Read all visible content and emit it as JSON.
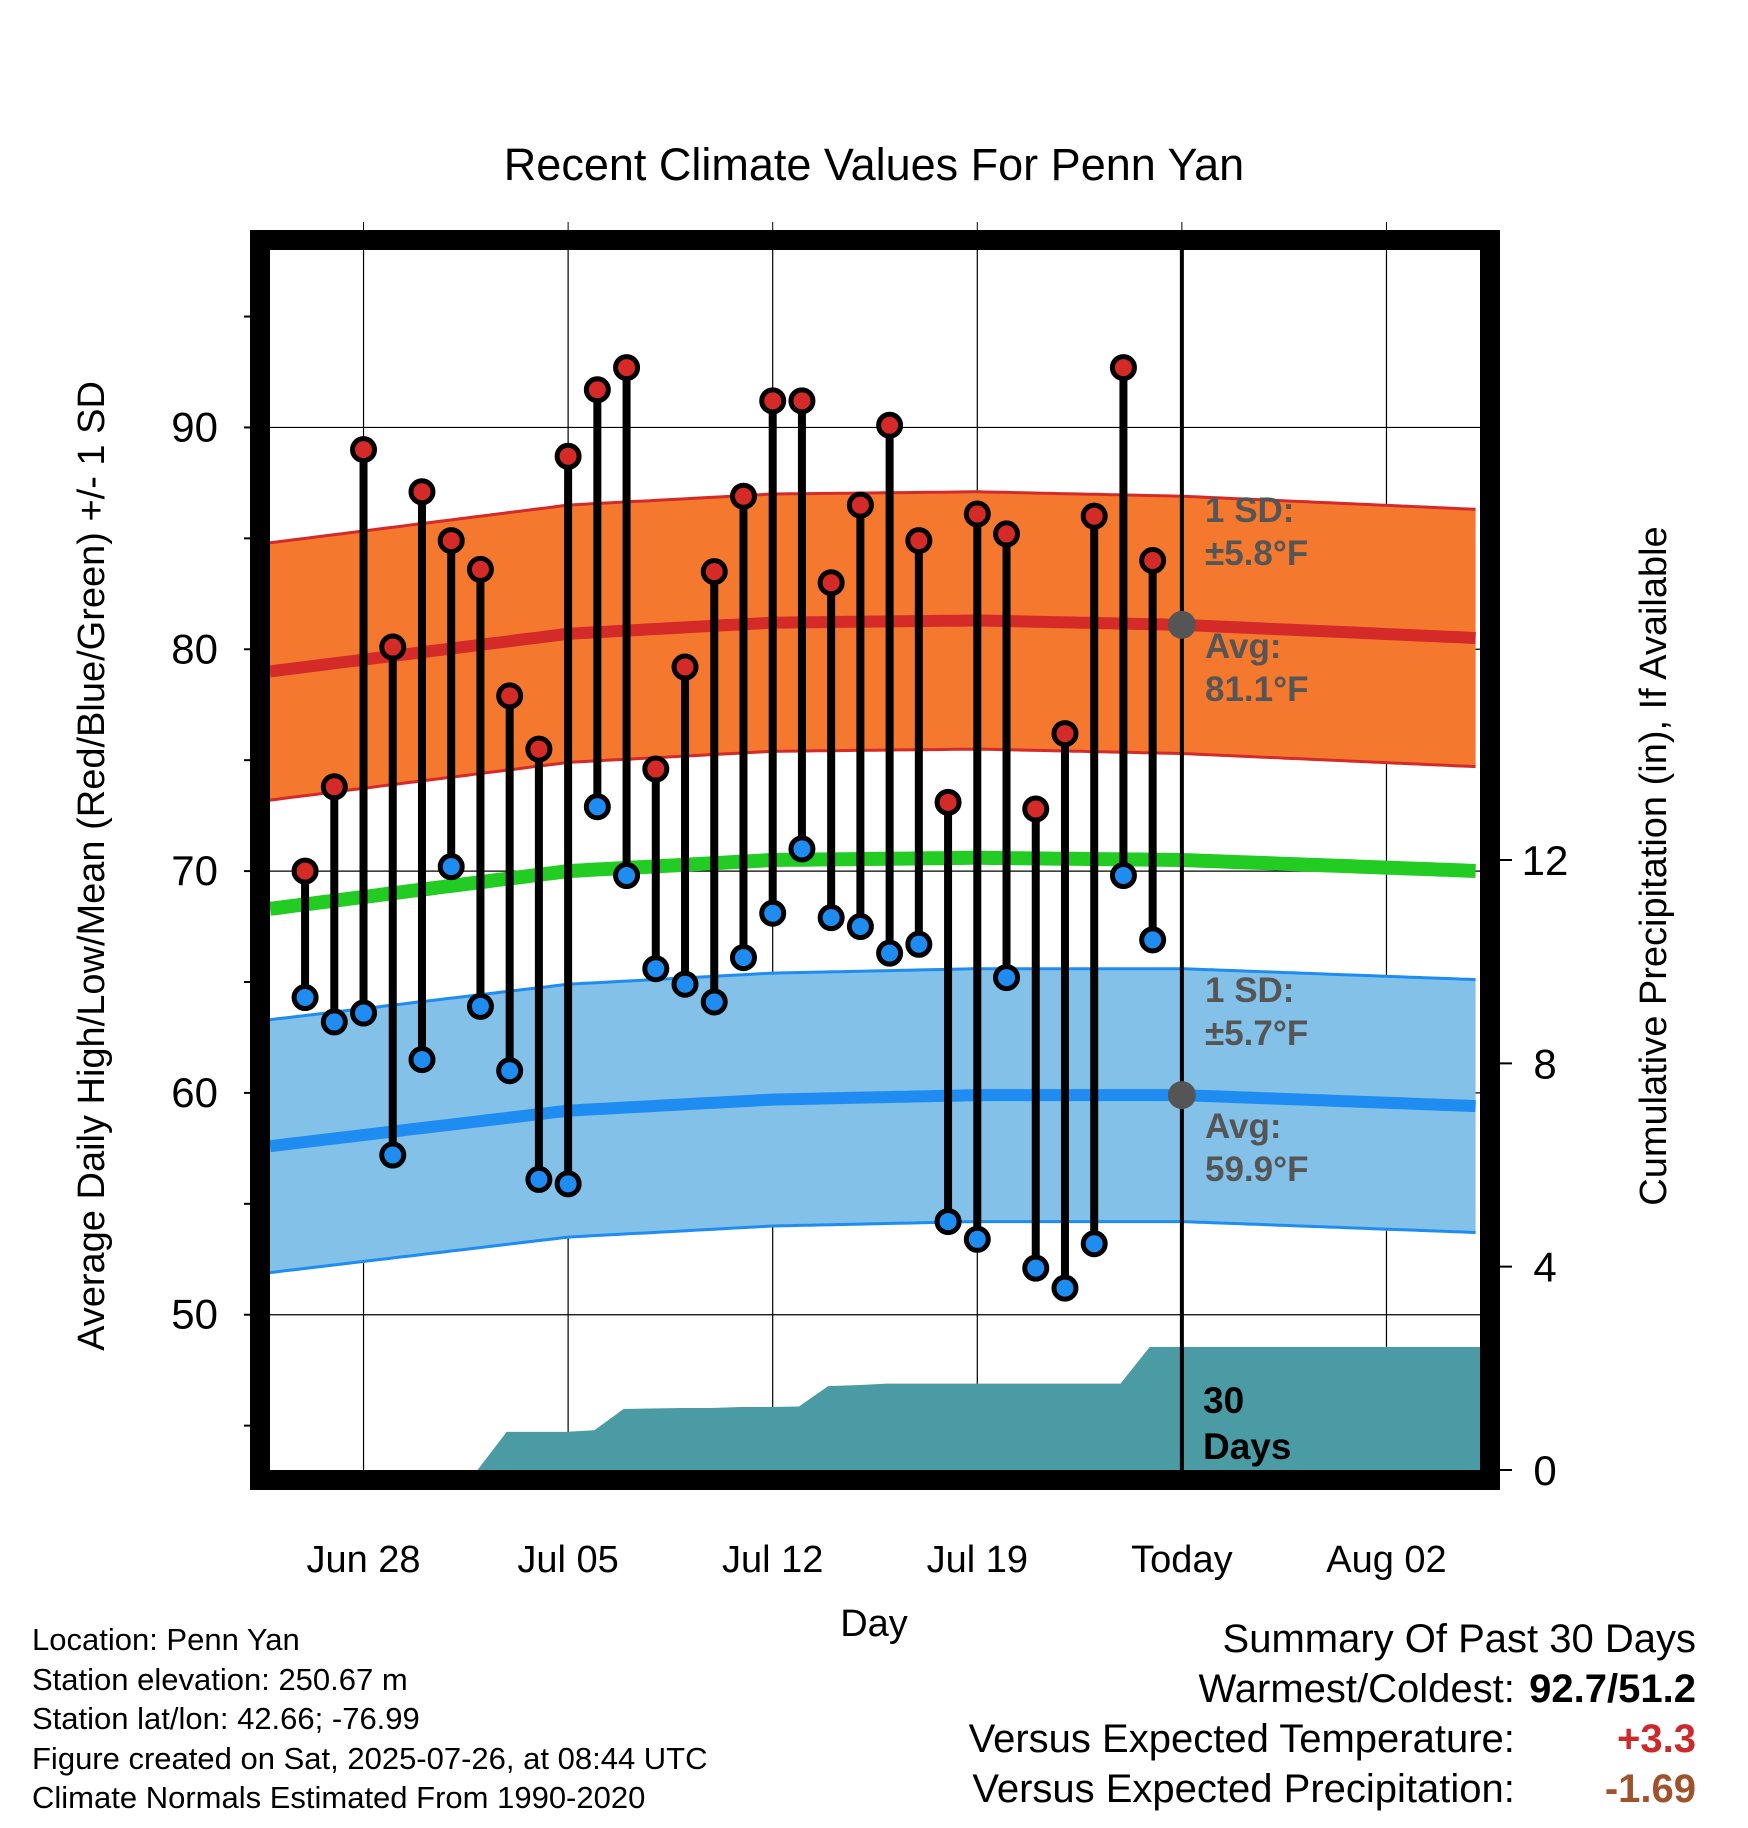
{
  "chart_data": {
    "type": "line",
    "title": "Recent Climate Values For Penn Yan",
    "xlabel": "Day",
    "ylabel": "Average Daily High/Low/Mean (Red/Blue/Green) +/- 1 SD",
    "y2label": "Cumulative Precipitation (in), If Available",
    "ylim": [
      43,
      98
    ],
    "y_ticks": [
      50,
      60,
      70,
      80,
      90
    ],
    "y2lim": [
      0,
      24
    ],
    "y2_ticks": [
      0,
      4,
      8,
      12
    ],
    "x_range_days": [
      -3.2,
      38.2
    ],
    "x_ticks": [
      {
        "day": 0,
        "label": "Jun 28"
      },
      {
        "day": 7,
        "label": "Jul 05"
      },
      {
        "day": 14,
        "label": "Jul 12"
      },
      {
        "day": 21,
        "label": "Jul 19"
      },
      {
        "day": 28,
        "label": "Today"
      },
      {
        "day": 35,
        "label": "Aug 02"
      }
    ],
    "grid": true,
    "today_day": 28,
    "daily_days": [
      -2,
      -1,
      0,
      1,
      2,
      3,
      4,
      5,
      6,
      7,
      8,
      9,
      10,
      11,
      12,
      13,
      14,
      15,
      16,
      17,
      18,
      19,
      20,
      21,
      22,
      23,
      24,
      25,
      26,
      27
    ],
    "daily_highs": [
      70.0,
      73.8,
      89.0,
      80.1,
      87.1,
      84.9,
      83.6,
      77.9,
      75.5,
      88.7,
      91.7,
      92.7,
      74.6,
      79.2,
      83.5,
      86.9,
      91.2,
      91.2,
      83.0,
      86.5,
      90.1,
      84.9,
      73.1,
      86.1,
      85.2,
      72.8,
      76.2,
      86.0,
      92.7,
      84.0
    ],
    "daily_lows": [
      64.3,
      63.2,
      63.6,
      57.2,
      61.5,
      70.2,
      63.9,
      61.0,
      56.1,
      55.9,
      72.9,
      69.8,
      65.6,
      64.9,
      64.1,
      66.1,
      68.1,
      71.0,
      67.9,
      67.5,
      66.3,
      66.7,
      54.2,
      53.4,
      65.2,
      52.1,
      51.2,
      53.2,
      69.8,
      66.9
    ],
    "normal_high": [
      {
        "day": -3.2,
        "value": 79.0
      },
      {
        "day": 7,
        "value": 80.7
      },
      {
        "day": 14,
        "value": 81.2
      },
      {
        "day": 21,
        "value": 81.3
      },
      {
        "day": 28,
        "value": 81.1
      },
      {
        "day": 38.2,
        "value": 80.5
      }
    ],
    "normal_low": [
      {
        "day": -3.2,
        "value": 57.6
      },
      {
        "day": 7,
        "value": 59.2
      },
      {
        "day": 14,
        "value": 59.7
      },
      {
        "day": 21,
        "value": 59.9
      },
      {
        "day": 28,
        "value": 59.9
      },
      {
        "day": 38.2,
        "value": 59.4
      }
    ],
    "normal_mean": [
      {
        "day": -3.2,
        "value": 68.3
      },
      {
        "day": 7,
        "value": 70.0
      },
      {
        "day": 14,
        "value": 70.5
      },
      {
        "day": 21,
        "value": 70.6
      },
      {
        "day": 28,
        "value": 70.5
      },
      {
        "day": 38.2,
        "value": 70.0
      }
    ],
    "high_sd": 5.8,
    "low_sd": 5.7,
    "precip_cumulative": [
      {
        "day": 3.9,
        "value": 0.0
      },
      {
        "day": 4.9,
        "value": 0.75
      },
      {
        "day": 5.9,
        "value": 0.75
      },
      {
        "day": 6.9,
        "value": 0.75
      },
      {
        "day": 7.9,
        "value": 0.78
      },
      {
        "day": 8.9,
        "value": 1.2
      },
      {
        "day": 10.9,
        "value": 1.22
      },
      {
        "day": 11.9,
        "value": 1.22
      },
      {
        "day": 12.9,
        "value": 1.24
      },
      {
        "day": 13.9,
        "value": 1.24
      },
      {
        "day": 14.9,
        "value": 1.25
      },
      {
        "day": 15.9,
        "value": 1.65
      },
      {
        "day": 16.9,
        "value": 1.67
      },
      {
        "day": 17.9,
        "value": 1.7
      },
      {
        "day": 18.9,
        "value": 1.7
      },
      {
        "day": 19.9,
        "value": 1.7
      },
      {
        "day": 20.9,
        "value": 1.7
      },
      {
        "day": 21.9,
        "value": 1.7
      },
      {
        "day": 22.9,
        "value": 1.7
      },
      {
        "day": 23.9,
        "value": 1.7
      },
      {
        "day": 24.9,
        "value": 1.7
      },
      {
        "day": 25.9,
        "value": 1.7
      },
      {
        "day": 26.9,
        "value": 2.42
      },
      {
        "day": 38.2,
        "value": 2.42
      }
    ],
    "annotations": {
      "high_sd": [
        "1 SD:",
        "±5.8°F"
      ],
      "high_avg": [
        "Avg:",
        "81.1°F"
      ],
      "low_sd": [
        "1 SD:",
        "±5.7°F"
      ],
      "low_avg": [
        "Avg:",
        "59.9°F"
      ],
      "days_label": [
        "30",
        "Days"
      ]
    }
  },
  "info": {
    "location": "Location: Penn Yan",
    "elevation": "Station elevation: 250.67 m",
    "latlon": "Station lat/lon: 42.66; -76.99",
    "created": "Figure created on Sat, 2025-07-26, at 08:44 UTC",
    "normals": "Climate Normals Estimated From 1990-2020"
  },
  "summary": {
    "title": "Summary Of Past 30 Days",
    "warm_cold_label": "Warmest/Coldest:",
    "warm_cold_value": "92.7/51.2",
    "temp_label": "Versus Expected Temperature:",
    "temp_value": "+3.3",
    "precip_label": "Versus Expected Precipitation:",
    "precip_value": "-1.69"
  },
  "colors": {
    "high_band": "#f4792f",
    "high_line": "#d42a28",
    "low_band": "#83c1e8",
    "low_line": "#1e8cf0",
    "mean_line": "#22cc22",
    "precip_fill": "#4a9ba4",
    "high_marker": "#d42a28",
    "low_marker": "#1e8cf0",
    "annotation_text": "#555555"
  }
}
